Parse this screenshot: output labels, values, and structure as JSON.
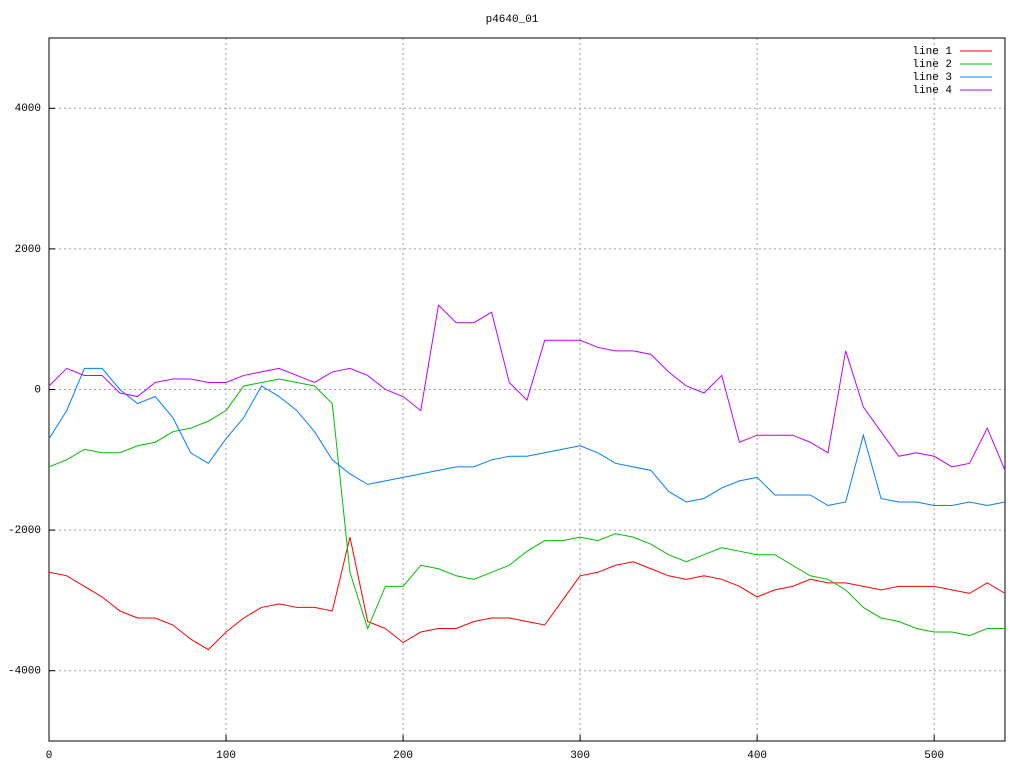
{
  "chart_data": {
    "type": "line",
    "title": "p4640_01",
    "x": [
      0,
      10,
      20,
      30,
      40,
      50,
      60,
      70,
      80,
      90,
      100,
      110,
      120,
      130,
      140,
      150,
      160,
      170,
      180,
      190,
      200,
      210,
      220,
      230,
      240,
      250,
      260,
      270,
      280,
      290,
      300,
      310,
      320,
      330,
      340,
      350,
      360,
      370,
      380,
      390,
      400,
      410,
      420,
      430,
      440,
      450,
      460,
      470,
      480,
      490,
      500,
      510,
      520,
      530,
      540
    ],
    "series": [
      {
        "name": "line 1",
        "color": "#ff0000",
        "values": [
          -2600,
          -2650,
          -2800,
          -2950,
          -3150,
          -3250,
          -3250,
          -3350,
          -3550,
          -3700,
          -3450,
          -3250,
          -3100,
          -3050,
          -3100,
          -3100,
          -3150,
          -2100,
          -3300,
          -3400,
          -3600,
          -3450,
          -3400,
          -3400,
          -3300,
          -3250,
          -3250,
          -3300,
          -3350,
          -3000,
          -2650,
          -2600,
          -2500,
          -2450,
          -2550,
          -2650,
          -2700,
          -2650,
          -2700,
          -2800,
          -2950,
          -2850,
          -2800,
          -2700,
          -2750,
          -2750,
          -2800,
          -2850,
          -2800,
          -2800,
          -2800,
          -2850,
          -2900,
          -2750,
          -2900
        ]
      },
      {
        "name": "line 2",
        "color": "#00c000",
        "values": [
          -1100,
          -1000,
          -850,
          -900,
          -900,
          -800,
          -750,
          -600,
          -550,
          -450,
          -300,
          50,
          100,
          150,
          100,
          50,
          -200,
          -2600,
          -3400,
          -2800,
          -2800,
          -2500,
          -2550,
          -2650,
          -2700,
          -2600,
          -2500,
          -2300,
          -2150,
          -2150,
          -2100,
          -2150,
          -2050,
          -2100,
          -2200,
          -2350,
          -2450,
          -2350,
          -2250,
          -2300,
          -2350,
          -2350,
          -2500,
          -2650,
          -2700,
          -2850,
          -3100,
          -3250,
          -3300,
          -3400,
          -3450,
          -3450,
          -3500,
          -3400,
          -3400
        ]
      },
      {
        "name": "line 3",
        "color": "#0080ff",
        "values": [
          -700,
          -300,
          300,
          300,
          0,
          -200,
          -100,
          -400,
          -900,
          -1050,
          -700,
          -400,
          50,
          -100,
          -300,
          -600,
          -1000,
          -1200,
          -1350,
          -1300,
          -1250,
          -1200,
          -1150,
          -1100,
          -1100,
          -1000,
          -950,
          -950,
          -900,
          -850,
          -800,
          -900,
          -1050,
          -1100,
          -1150,
          -1450,
          -1600,
          -1550,
          -1400,
          -1300,
          -1250,
          -1500,
          -1500,
          -1500,
          -1650,
          -1600,
          -650,
          -1550,
          -1600,
          -1600,
          -1650,
          -1650,
          -1600,
          -1650,
          -1600
        ]
      },
      {
        "name": "line 4",
        "color": "#c000ff",
        "values": [
          50,
          300,
          200,
          200,
          -50,
          -100,
          100,
          150,
          150,
          100,
          100,
          200,
          250,
          300,
          200,
          100,
          250,
          300,
          200,
          0,
          -100,
          -300,
          1200,
          950,
          950,
          1100,
          100,
          -150,
          700,
          700,
          700,
          600,
          550,
          550,
          500,
          250,
          50,
          -50,
          200,
          -750,
          -650,
          -650,
          -650,
          -750,
          -900,
          550,
          -250,
          -600,
          -950,
          -900,
          -950,
          -1100,
          -1050,
          -550,
          -1150
        ]
      }
    ],
    "xlim": [
      0,
      540
    ],
    "ylim": [
      -5000,
      5000
    ],
    "xticks": [
      0,
      100,
      200,
      300,
      400,
      500
    ],
    "yticks": [
      -4000,
      -2000,
      0,
      2000,
      4000
    ],
    "grid": true,
    "legend": "top-right"
  }
}
